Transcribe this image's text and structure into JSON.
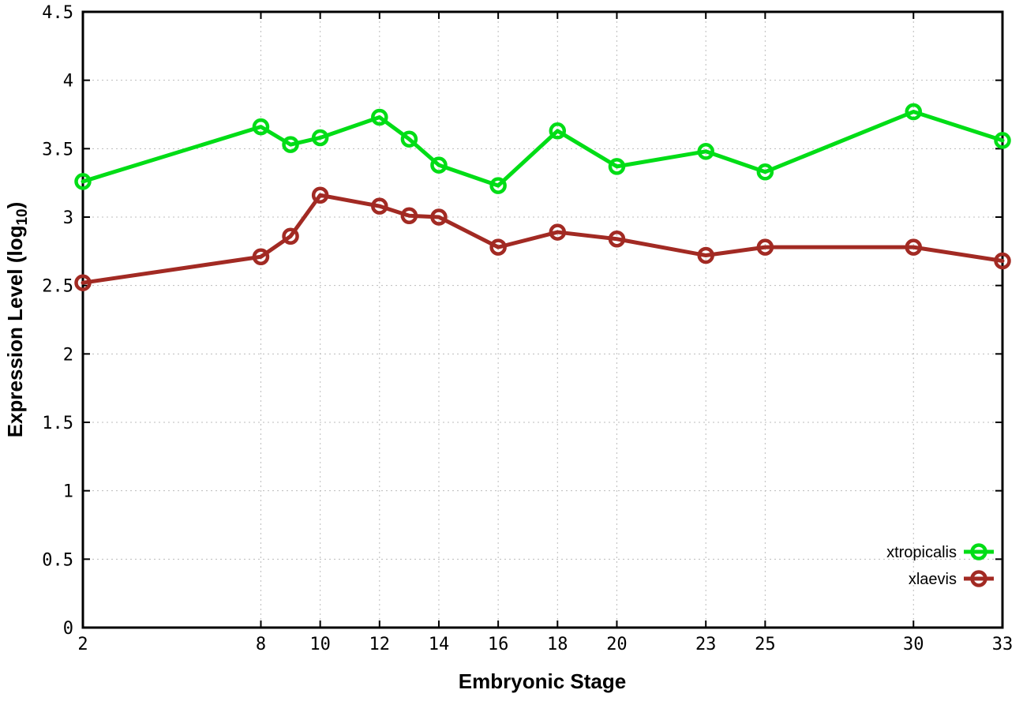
{
  "chart_data": {
    "type": "line",
    "title": "",
    "xlabel": "Embryonic Stage",
    "ylabel": "Expression Level (log10)",
    "ylabel_parts": {
      "main": "Expression Level (log",
      "sub": "10",
      "close": ")"
    },
    "x": [
      2,
      8,
      9,
      10,
      12,
      13,
      14,
      16,
      18,
      20,
      23,
      25,
      30,
      33
    ],
    "series": [
      {
        "name": "xtropicalis",
        "color": "#00dd16",
        "values": [
          3.26,
          3.66,
          3.53,
          3.58,
          3.73,
          3.57,
          3.38,
          3.23,
          3.63,
          3.37,
          3.48,
          3.33,
          3.77,
          3.56
        ]
      },
      {
        "name": "xlaevis",
        "color": "#a22a23",
        "values": [
          2.52,
          2.71,
          2.86,
          3.16,
          3.08,
          3.01,
          3.0,
          2.78,
          2.89,
          2.84,
          2.72,
          2.78,
          2.78,
          2.68
        ]
      }
    ],
    "xlim": [
      2,
      33
    ],
    "ylim": [
      0,
      4.5
    ],
    "xticks": [
      2,
      8,
      10,
      12,
      14,
      16,
      18,
      20,
      23,
      25,
      30,
      33
    ],
    "yticks": [
      0,
      0.5,
      1,
      1.5,
      2,
      2.5,
      3,
      3.5,
      4,
      4.5
    ],
    "grid": true,
    "grid_style": "dotted",
    "legend_position": "bottom-right",
    "marker": "open-circle",
    "background_color": "#ffffff",
    "axis_color": "#000000",
    "grid_color": "#bcbcbc"
  }
}
